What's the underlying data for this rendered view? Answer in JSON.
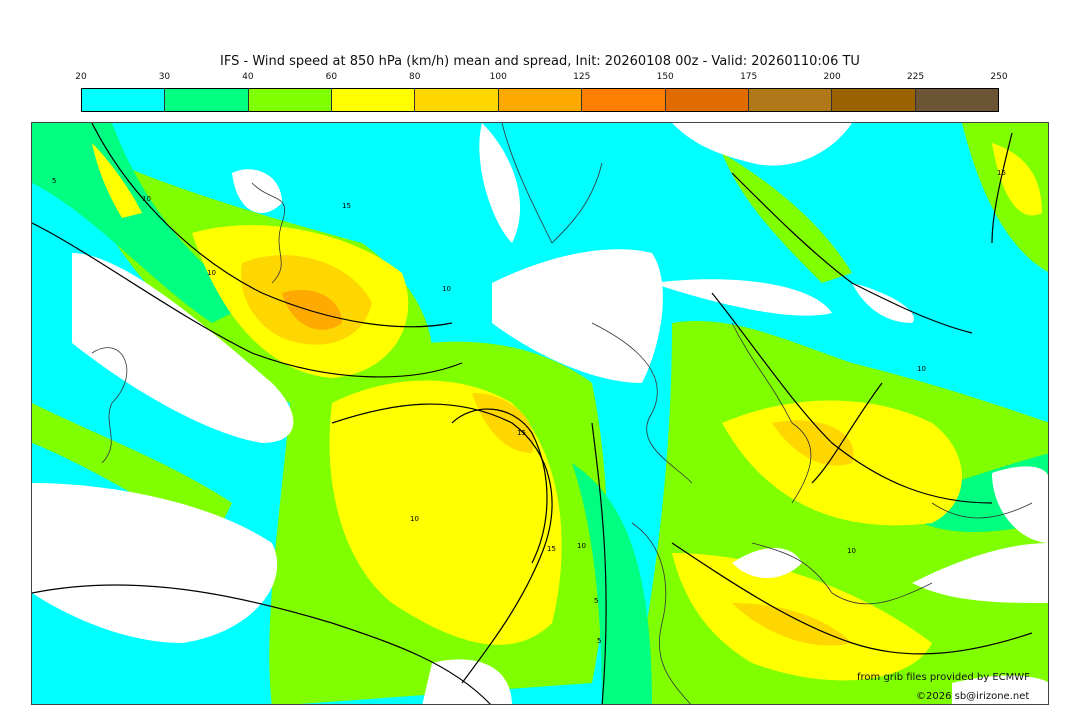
{
  "title": "IFS - Wind speed at 850 hPa (km/h) mean and spread, Init: 20260108 00z - Valid: 20260110:06 TU",
  "legend": {
    "ticks": [
      "20",
      "30",
      "40",
      "60",
      "80",
      "100",
      "125",
      "150",
      "175",
      "200",
      "225",
      "250"
    ],
    "colors": [
      "#00ffff",
      "#00ff80",
      "#80ff00",
      "#ffff00",
      "#ffd700",
      "#ffaa00",
      "#ff8000",
      "#e06c00",
      "#b07818",
      "#9a6200",
      "#6b5535"
    ]
  },
  "map": {
    "contour_labels": [
      "5",
      "10",
      "15",
      "10",
      "10",
      "15",
      "10",
      "5",
      "10",
      "15",
      "10",
      "10",
      "15",
      "5"
    ]
  },
  "credits": {
    "source": "from grib files provided by ECMWF",
    "copyright": "©2026 sb@irizone.net"
  }
}
